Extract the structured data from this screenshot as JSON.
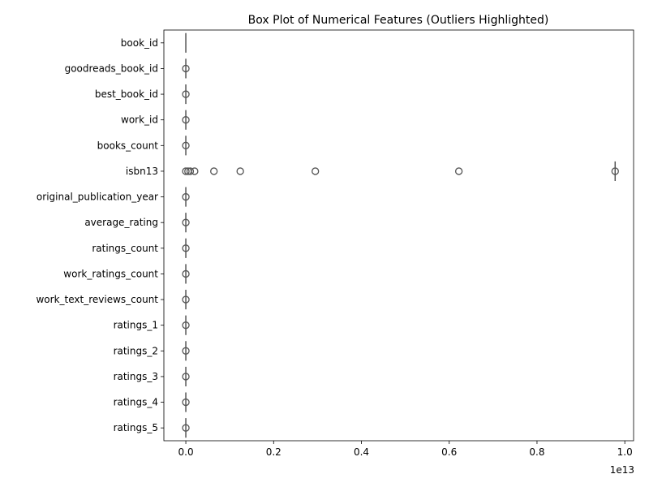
{
  "chart_data": {
    "type": "box",
    "orientation": "horizontal",
    "title": "Box Plot of Numerical Features (Outliers Highlighted)",
    "xlabel": "",
    "ylabel": "",
    "x_scale_label": "1e13",
    "x_scale_factor": 10000000000000,
    "xlim": [
      -0.05,
      1.02
    ],
    "x_ticks": [
      0.0,
      0.2,
      0.4,
      0.6,
      0.8,
      1.0
    ],
    "x_tick_labels": [
      "0.0",
      "0.2",
      "0.4",
      "0.6",
      "0.8",
      "1.0"
    ],
    "grid": false,
    "box_color": "#4c72b0",
    "line_color": "#555555",
    "features": [
      {
        "name": "book_id",
        "min": 0,
        "max": 0,
        "outliers": []
      },
      {
        "name": "goodreads_book_id",
        "min": 0,
        "max": 0,
        "outliers": [
          0.0
        ]
      },
      {
        "name": "best_book_id",
        "min": 0,
        "max": 0,
        "outliers": [
          0.0
        ]
      },
      {
        "name": "work_id",
        "min": 0,
        "max": 0,
        "outliers": [
          0.0
        ]
      },
      {
        "name": "books_count",
        "min": 0,
        "max": 0,
        "outliers": [
          0.0
        ]
      },
      {
        "name": "isbn13",
        "min": 0.978,
        "max": 0.978,
        "outliers": [
          0.0,
          0.005,
          0.01,
          0.02,
          0.064,
          0.124,
          0.295,
          0.622,
          0.978
        ]
      },
      {
        "name": "original_publication_year",
        "min": 0,
        "max": 0,
        "outliers": [
          0.0
        ]
      },
      {
        "name": "average_rating",
        "min": 0,
        "max": 0,
        "outliers": [
          0.0
        ]
      },
      {
        "name": "ratings_count",
        "min": 0,
        "max": 0,
        "outliers": [
          0.0
        ]
      },
      {
        "name": "work_ratings_count",
        "min": 0,
        "max": 0,
        "outliers": [
          0.0
        ]
      },
      {
        "name": "work_text_reviews_count",
        "min": 0,
        "max": 0,
        "outliers": [
          0.0
        ]
      },
      {
        "name": "ratings_1",
        "min": 0,
        "max": 0,
        "outliers": [
          0.0
        ]
      },
      {
        "name": "ratings_2",
        "min": 0,
        "max": 0,
        "outliers": [
          0.0
        ]
      },
      {
        "name": "ratings_3",
        "min": 0,
        "max": 0,
        "outliers": [
          0.0
        ]
      },
      {
        "name": "ratings_4",
        "min": 0,
        "max": 0,
        "outliers": [
          0.0
        ]
      },
      {
        "name": "ratings_5",
        "min": 0,
        "max": 0,
        "outliers": [
          0.0
        ]
      }
    ]
  }
}
